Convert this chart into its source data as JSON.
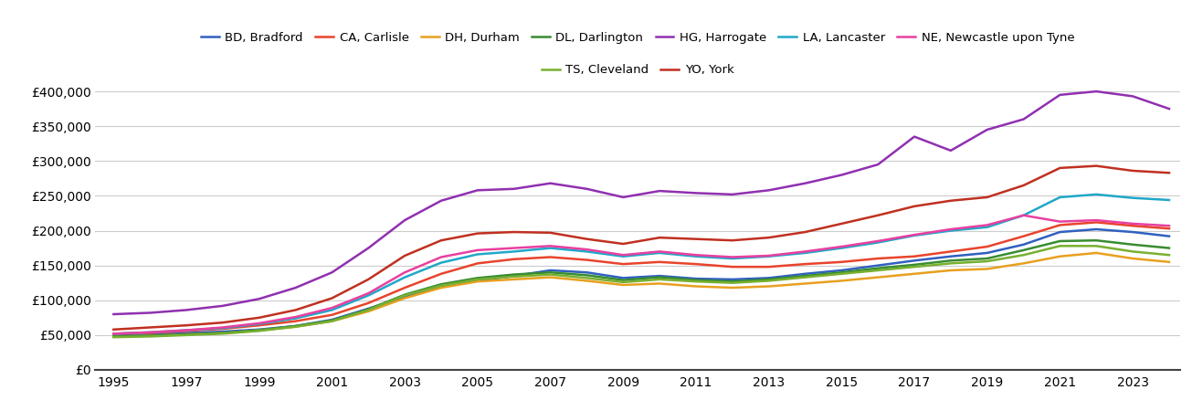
{
  "years": [
    1995,
    1996,
    1997,
    1998,
    1999,
    2000,
    2001,
    2002,
    2003,
    2004,
    2005,
    2006,
    2007,
    2008,
    2009,
    2010,
    2011,
    2012,
    2013,
    2014,
    2015,
    2016,
    2017,
    2018,
    2019,
    2020,
    2021,
    2022,
    2023,
    2024
  ],
  "series": {
    "BD, Bradford": {
      "color": "#3060c0",
      "data": [
        49000,
        51000,
        53000,
        55000,
        58000,
        63000,
        72000,
        88000,
        105000,
        120000,
        128000,
        135000,
        143000,
        140000,
        132000,
        135000,
        131000,
        130000,
        132000,
        138000,
        143000,
        150000,
        157000,
        163000,
        168000,
        180000,
        198000,
        202000,
        198000,
        192000
      ]
    },
    "CA, Carlisle": {
      "color": "#e8442c",
      "data": [
        52000,
        53000,
        56000,
        59000,
        64000,
        70000,
        79000,
        96000,
        118000,
        138000,
        153000,
        159000,
        162000,
        158000,
        152000,
        155000,
        152000,
        148000,
        148000,
        152000,
        155000,
        160000,
        163000,
        170000,
        177000,
        192000,
        208000,
        212000,
        207000,
        203000
      ]
    },
    "DH, Durham": {
      "color": "#e8a020",
      "data": [
        48000,
        49000,
        51000,
        53000,
        57000,
        62000,
        70000,
        84000,
        103000,
        118000,
        127000,
        130000,
        133000,
        128000,
        122000,
        124000,
        120000,
        118000,
        120000,
        124000,
        128000,
        133000,
        138000,
        143000,
        145000,
        153000,
        163000,
        168000,
        160000,
        155000
      ]
    },
    "DL, Darlington": {
      "color": "#388c30",
      "data": [
        48000,
        49000,
        51000,
        53000,
        57000,
        63000,
        71000,
        87000,
        108000,
        123000,
        132000,
        137000,
        140000,
        136000,
        129000,
        133000,
        129000,
        127000,
        130000,
        135000,
        140000,
        146000,
        151000,
        157000,
        160000,
        172000,
        185000,
        186000,
        180000,
        175000
      ]
    },
    "HG, Harrogate": {
      "color": "#9030b0",
      "data": [
        80000,
        82000,
        86000,
        92000,
        102000,
        118000,
        140000,
        175000,
        215000,
        243000,
        258000,
        260000,
        268000,
        260000,
        248000,
        257000,
        254000,
        252000,
        258000,
        268000,
        280000,
        295000,
        335000,
        315000,
        345000,
        360000,
        395000,
        400000,
        393000,
        375000
      ]
    },
    "LA, Lancaster": {
      "color": "#20a8c8",
      "data": [
        52000,
        54000,
        57000,
        60000,
        66000,
        74000,
        86000,
        107000,
        133000,
        154000,
        166000,
        170000,
        175000,
        170000,
        163000,
        168000,
        163000,
        160000,
        163000,
        168000,
        175000,
        183000,
        193000,
        200000,
        205000,
        222000,
        248000,
        252000,
        247000,
        244000
      ]
    },
    "NE, Newcastle upon Tyne": {
      "color": "#e840a0",
      "data": [
        52000,
        54000,
        57000,
        61000,
        67000,
        76000,
        89000,
        110000,
        140000,
        162000,
        172000,
        175000,
        178000,
        173000,
        165000,
        170000,
        165000,
        162000,
        164000,
        170000,
        177000,
        185000,
        194000,
        202000,
        208000,
        222000,
        213000,
        215000,
        210000,
        207000
      ]
    },
    "TS, Cleveland": {
      "color": "#78b030",
      "data": [
        47000,
        48000,
        50000,
        52000,
        56000,
        62000,
        70000,
        86000,
        107000,
        121000,
        130000,
        134000,
        137000,
        132000,
        126000,
        130000,
        127000,
        125000,
        128000,
        133000,
        138000,
        143000,
        148000,
        153000,
        156000,
        165000,
        178000,
        178000,
        170000,
        165000
      ]
    },
    "YO, York": {
      "color": "#c03020",
      "data": [
        58000,
        61000,
        64000,
        68000,
        75000,
        86000,
        103000,
        130000,
        164000,
        186000,
        196000,
        198000,
        197000,
        188000,
        181000,
        190000,
        188000,
        186000,
        190000,
        198000,
        210000,
        222000,
        235000,
        243000,
        248000,
        265000,
        290000,
        293000,
        286000,
        283000
      ]
    }
  },
  "ylim": [
    0,
    425000
  ],
  "yticks": [
    0,
    50000,
    100000,
    150000,
    200000,
    250000,
    300000,
    350000,
    400000
  ],
  "xticks": [
    1995,
    1997,
    1999,
    2001,
    2003,
    2005,
    2007,
    2009,
    2011,
    2013,
    2015,
    2017,
    2019,
    2021,
    2023
  ],
  "background_color": "#ffffff",
  "grid_color": "#cccccc",
  "legend_row1": [
    "BD, Bradford",
    "CA, Carlisle",
    "DH, Durham",
    "DL, Darlington",
    "HG, Harrogate",
    "LA, Lancaster",
    "NE, Newcastle upon Tyne"
  ],
  "legend_row2": [
    "TS, Cleveland",
    "YO, York"
  ],
  "legend_order": [
    "BD, Bradford",
    "CA, Carlisle",
    "DH, Durham",
    "DL, Darlington",
    "HG, Harrogate",
    "LA, Lancaster",
    "NE, Newcastle upon Tyne",
    "TS, Cleveland",
    "YO, York"
  ]
}
